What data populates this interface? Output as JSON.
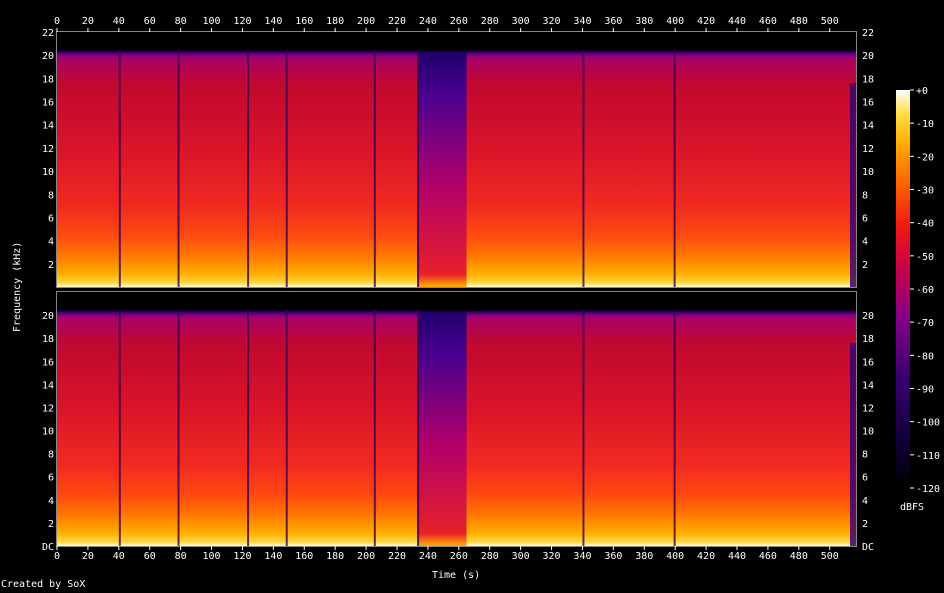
{
  "chart_data": {
    "type": "heatmap",
    "xlabel": "Time (s)",
    "ylabel": "Frequency (kHz)",
    "colorbar_label": "dBFS",
    "x_ticks": [
      0,
      20,
      40,
      60,
      80,
      100,
      120,
      140,
      160,
      180,
      200,
      220,
      240,
      260,
      280,
      300,
      320,
      340,
      360,
      380,
      400,
      420,
      440,
      460,
      480,
      500
    ],
    "y_ticks_top": [
      "2",
      "4",
      "6",
      "8",
      "10",
      "12",
      "14",
      "16",
      "18",
      "20",
      "22"
    ],
    "y_ticks_bottom": [
      "DC",
      "2",
      "4",
      "6",
      "8",
      "10",
      "12",
      "14",
      "16",
      "18",
      "20"
    ],
    "colorbar_ticks": [
      "+0",
      "-10",
      "-20",
      "-30",
      "-40",
      "-50",
      "-60",
      "-70",
      "-80",
      "-90",
      "-100",
      "-110",
      "-120"
    ],
    "xlim": [
      0,
      517
    ],
    "ylim_khz": [
      0,
      22
    ],
    "clim_dbfs": [
      -120,
      0
    ],
    "channels": 2,
    "cutoff_khz": 20.2,
    "quiet_gaps_s": [
      [
        233,
        265
      ]
    ],
    "dark_lines_s": [
      40,
      78,
      123,
      148,
      205,
      233,
      340,
      399
    ],
    "colormap": [
      "#000000",
      "#1a0050",
      "#4b0082",
      "#a0007a",
      "#e8002a",
      "#ff4a00",
      "#ff9a00",
      "#ffd82a",
      "#ffffff"
    ]
  },
  "footer": {
    "credit": "Created by SoX"
  }
}
